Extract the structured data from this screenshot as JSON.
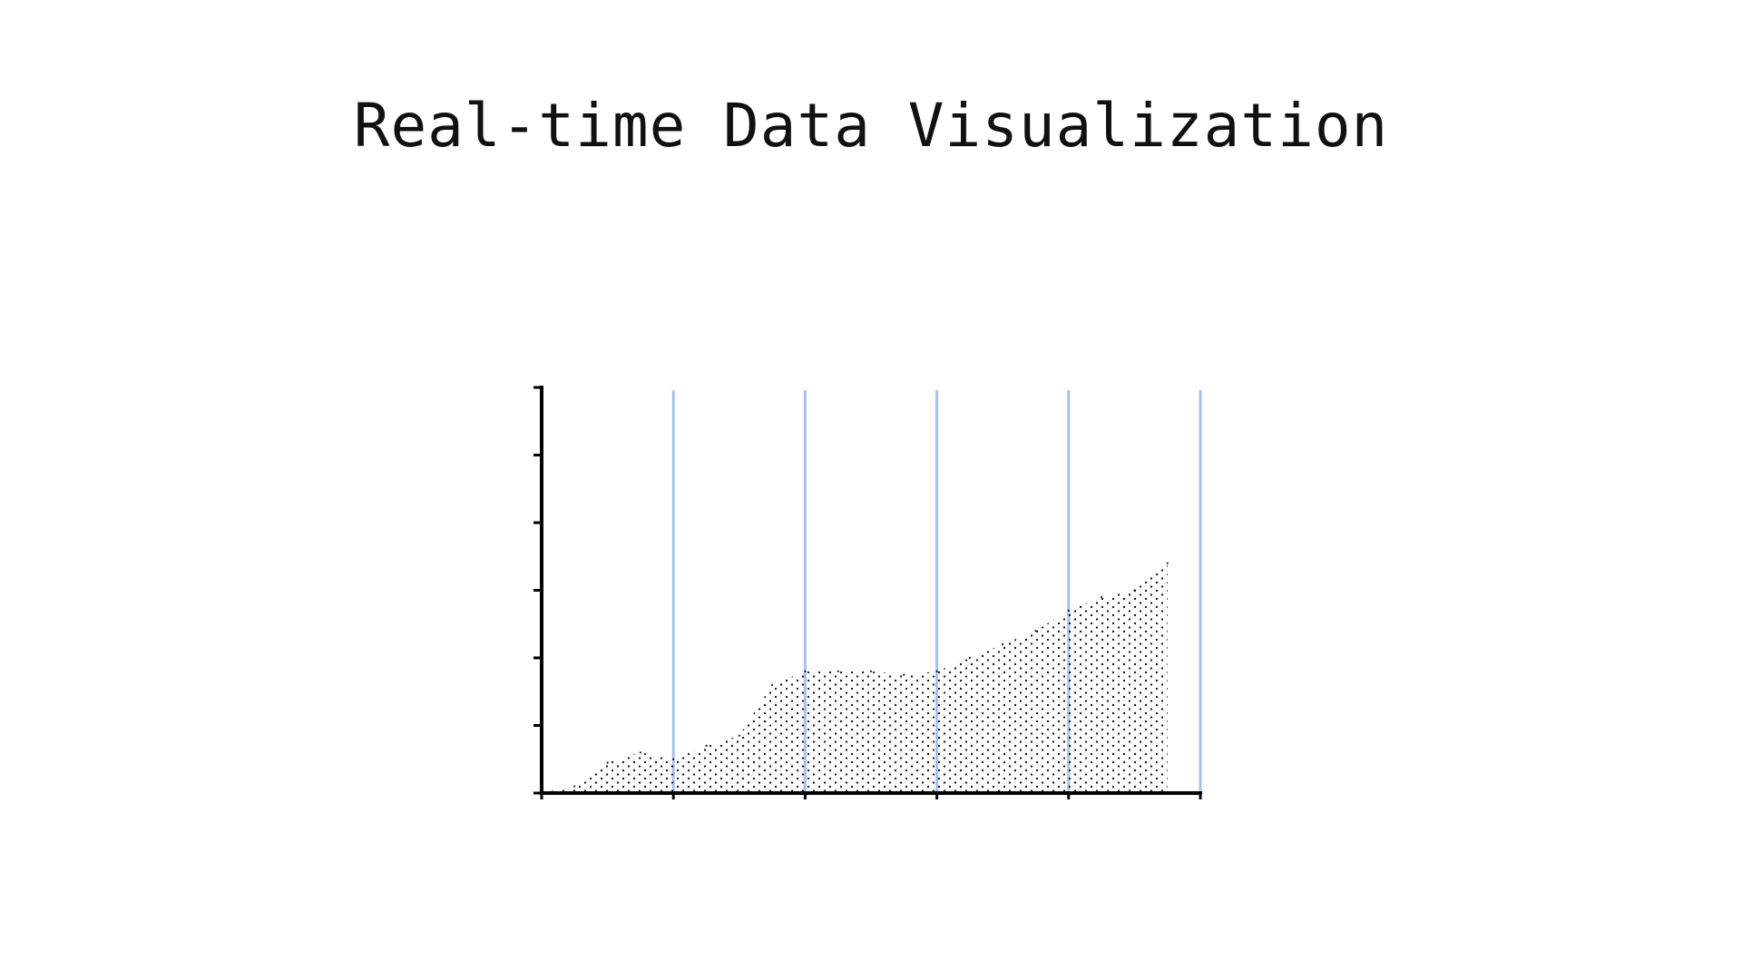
{
  "chart_data": {
    "type": "area",
    "title": "Real-time Data Visualization",
    "xlabel": "",
    "ylabel": "",
    "x": [
      0.0,
      0.25,
      0.5,
      0.75,
      1.0,
      1.25,
      1.5,
      1.75,
      2.0,
      2.25,
      2.5,
      2.75,
      3.0,
      3.25,
      3.5,
      3.75,
      4.0,
      4.25,
      4.5,
      4.75
    ],
    "values": [
      0.0,
      0.1,
      0.45,
      0.6,
      0.5,
      0.7,
      0.85,
      1.6,
      1.8,
      1.8,
      1.8,
      1.75,
      1.8,
      2.0,
      2.2,
      2.4,
      2.7,
      2.9,
      3.0,
      3.4
    ],
    "xlim": [
      0,
      5
    ],
    "ylim": [
      0,
      6
    ],
    "x_ticks": [
      0,
      1,
      2,
      3,
      4,
      5
    ],
    "y_ticks": [
      0,
      1,
      2,
      3,
      4,
      5,
      6
    ],
    "vertical_gridlines": [
      1,
      2,
      3,
      4,
      5
    ],
    "grid": true,
    "legend": "none",
    "colors": {
      "gridline": "#a7c0f2",
      "axis": "#000000",
      "fill_dots": "#000000"
    }
  }
}
